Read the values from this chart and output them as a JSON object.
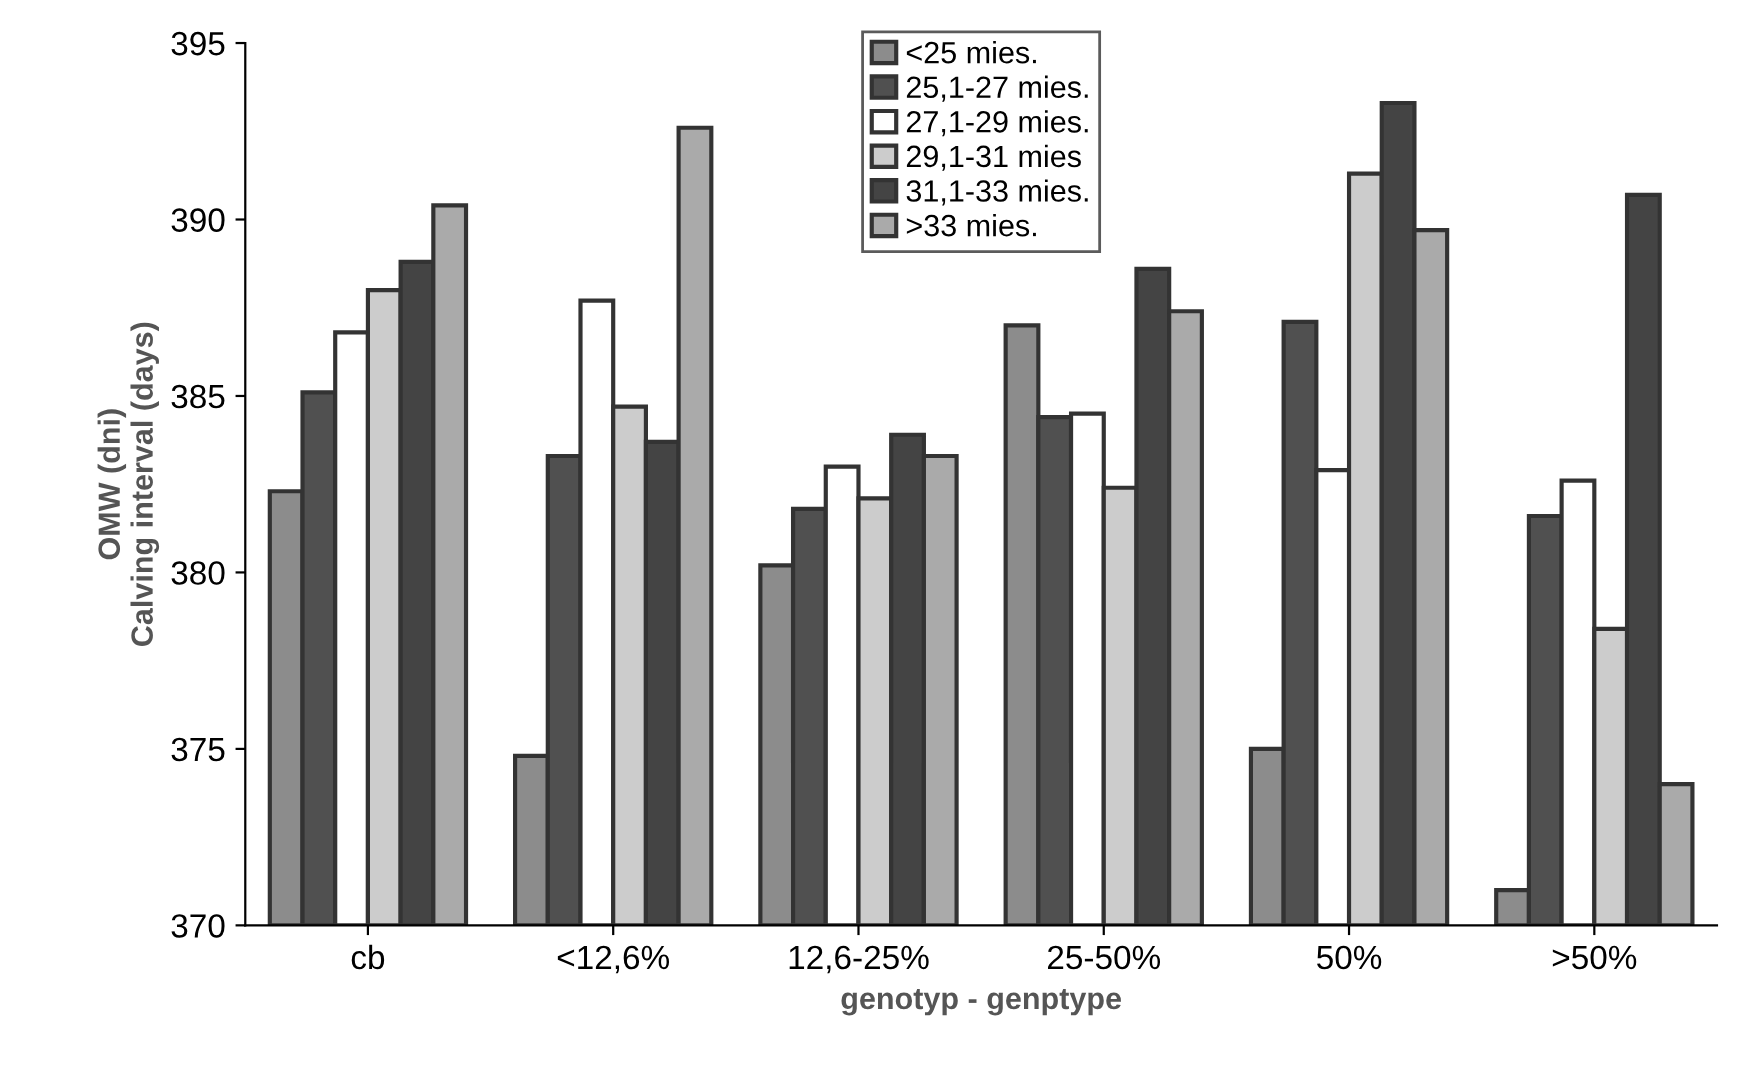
{
  "chart_data": {
    "type": "bar",
    "xlabel": "genotyp - genptype",
    "ylabel": "OMW (dni)\nCalving interval (days)",
    "categories": [
      "cb",
      "<12,6%",
      "12,6-25%",
      "25-50%",
      "50%",
      ">50%"
    ],
    "ylim": [
      370,
      395
    ],
    "yticks": [
      370,
      375,
      380,
      385,
      390,
      395
    ],
    "grid": false,
    "legend": "top",
    "series": [
      {
        "name": "<25 mies.",
        "color": "#8c8c8c",
        "values": [
          382.3,
          374.8,
          380.2,
          387.0,
          375.0,
          371.0
        ]
      },
      {
        "name": "25,1-27 mies.",
        "color": "#505050",
        "values": [
          385.1,
          383.3,
          381.8,
          384.4,
          387.1,
          381.6
        ]
      },
      {
        "name": "27,1-29 mies.",
        "color": "#ffffff",
        "values": [
          386.8,
          387.7,
          383.0,
          384.5,
          382.9,
          382.6
        ]
      },
      {
        "name": "29,1-31 mies",
        "color": "#cccccc",
        "values": [
          388.0,
          384.7,
          382.1,
          382.4,
          391.3,
          378.4
        ]
      },
      {
        "name": "31,1-33 mies.",
        "color": "#444444",
        "values": [
          388.8,
          383.7,
          383.9,
          388.6,
          393.3,
          390.7
        ]
      },
      {
        "name": ">33 mies.",
        "color": "#aaaaaa",
        "values": [
          390.4,
          392.6,
          383.3,
          387.4,
          389.7,
          374.0
        ]
      }
    ]
  }
}
